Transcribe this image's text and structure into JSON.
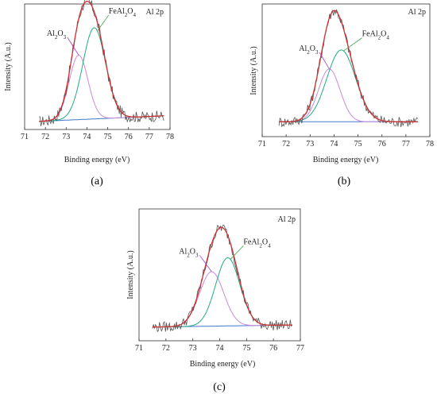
{
  "chart_data": [
    {
      "type": "line",
      "panel_label": "(a)",
      "title": "Al 2p",
      "xlabel": "Binding energy (eV)",
      "ylabel": "Intensity (A.u.)",
      "xlim": [
        71,
        78
      ],
      "xticks": [
        "71",
        "72",
        "73",
        "74",
        "75",
        "76",
        "77",
        "78"
      ],
      "grid": false,
      "legend": "none",
      "x_range_data": [
        71.7,
        77.7
      ],
      "annotations": [
        {
          "text": "Al",
          "sub": "2",
          "text2": "O",
          "sub2": "3",
          "target_x": 73.6,
          "label_x": 72.6
        },
        {
          "text": "FeAl",
          "sub": "2",
          "text2": "O",
          "sub2": "4",
          "target_x": 74.5,
          "label_x": 75.2
        }
      ],
      "series": [
        {
          "role": "experimental",
          "color": "#555555"
        },
        {
          "role": "envelope fit",
          "color": "#cc3333"
        },
        {
          "role": "Al2O3 component",
          "color": "#cc88dd",
          "center": 73.6,
          "width": 0.45,
          "height": 0.58
        },
        {
          "role": "FeAl2O4 component",
          "color": "#22aa88",
          "center": 74.35,
          "width": 0.55,
          "height": 0.82
        },
        {
          "role": "background",
          "color": "#4477cc",
          "start": 0.03,
          "end": 0.08
        }
      ]
    },
    {
      "type": "line",
      "panel_label": "(b)",
      "title": "Al 2p",
      "xlabel": "Binding energy (eV)",
      "ylabel": "Intensity (A.u.)",
      "xlim": [
        71,
        78
      ],
      "xticks": [
        "71",
        "72",
        "73",
        "74",
        "75",
        "76",
        "77",
        "78"
      ],
      "grid": false,
      "legend": "none",
      "x_range_data": [
        71.7,
        77.5
      ],
      "annotations": [
        {
          "text": "Al",
          "sub": "2",
          "text2": "O",
          "sub2": "3",
          "target_x": 73.8,
          "label_x": 73.0
        },
        {
          "text": "FeAl",
          "sub": "2",
          "text2": "O",
          "sub2": "4",
          "target_x": 74.4,
          "label_x": 75.3
        }
      ],
      "series": [
        {
          "role": "experimental",
          "color": "#555555"
        },
        {
          "role": "envelope fit",
          "color": "#cc3333"
        },
        {
          "role": "Al2O3 component",
          "color": "#cc88dd",
          "center": 73.8,
          "width": 0.45,
          "height": 0.5
        },
        {
          "role": "FeAl2O4 component",
          "color": "#22aa88",
          "center": 74.3,
          "width": 0.6,
          "height": 0.68
        },
        {
          "role": "background",
          "color": "#4477cc",
          "start": 0.05,
          "end": 0.05
        }
      ]
    },
    {
      "type": "line",
      "panel_label": "(c)",
      "title": "Al 2p",
      "xlabel": "Binding energy (eV)",
      "ylabel": "Intensity (A.u.)",
      "xlim": [
        71,
        77
      ],
      "xticks": [
        "71",
        "72",
        "73",
        "74",
        "75",
        "76",
        "77"
      ],
      "grid": false,
      "legend": "none",
      "x_range_data": [
        71.5,
        76.7
      ],
      "annotations": [
        {
          "text": "Al",
          "sub": "2",
          "text2": "O",
          "sub2": "3",
          "target_x": 73.7,
          "label_x": 72.9
        },
        {
          "text": "FeAl",
          "sub": "2",
          "text2": "O",
          "sub2": "4",
          "target_x": 74.4,
          "label_x": 75.0
        }
      ],
      "series": [
        {
          "role": "experimental",
          "color": "#555555"
        },
        {
          "role": "envelope fit",
          "color": "#cc3333"
        },
        {
          "role": "Al2O3 component",
          "color": "#cc88dd",
          "center": 73.7,
          "width": 0.45,
          "height": 0.52
        },
        {
          "role": "FeAl2O4 component",
          "color": "#22aa88",
          "center": 74.3,
          "width": 0.45,
          "height": 0.65
        },
        {
          "role": "background",
          "color": "#4477cc",
          "start": 0.04,
          "end": 0.06
        }
      ]
    }
  ]
}
